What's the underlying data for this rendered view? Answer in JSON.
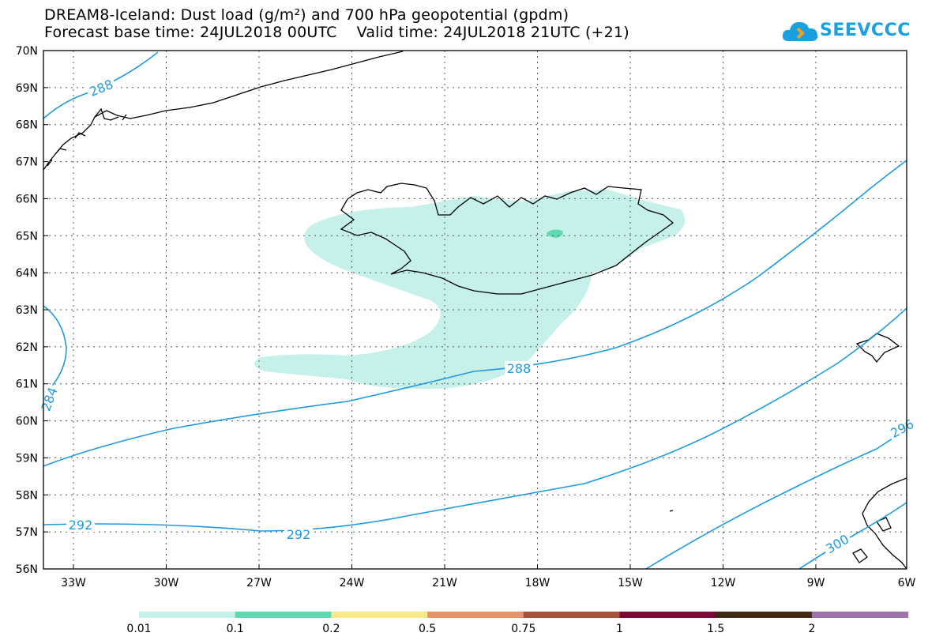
{
  "header": {
    "title_line1": "DREAM8-Iceland: Dust load (g/m²) and 700 hPa geopotential (gpdm)",
    "title_line2": "Forecast base time: 24JUL2018 00UTC    Valid time: 24JUL2018 21UTC (+21)",
    "logo_text": "SEEVCCC"
  },
  "map": {
    "lat_labels": [
      "70N",
      "69N",
      "68N",
      "67N",
      "66N",
      "65N",
      "64N",
      "63N",
      "62N",
      "61N",
      "60N",
      "59N",
      "58N",
      "57N",
      "56N"
    ],
    "lon_labels": [
      "33W",
      "30W",
      "27W",
      "24W",
      "21W",
      "18W",
      "15W",
      "12W",
      "9W",
      "6W"
    ],
    "contour_labels": [
      {
        "text": "288"
      },
      {
        "text": "288"
      },
      {
        "text": "284"
      },
      {
        "text": "292"
      },
      {
        "text": "292"
      },
      {
        "text": "300"
      },
      {
        "text": "296"
      }
    ],
    "colors": {
      "contour": "#1e9be0",
      "dust_01": "#c6f0ea",
      "dust_02": "#5fd9b0"
    }
  },
  "colorbar": {
    "labels": [
      "0.01",
      "0.1",
      "0.2",
      "0.5",
      "0.75",
      "1",
      "1.5",
      "2"
    ],
    "colors": [
      "#c6f0ea",
      "#5fd9b0",
      "#f6e98a",
      "#e8916d",
      "#a8523e",
      "#7a0a33",
      "#3d2a17",
      "#9e72a8"
    ]
  }
}
